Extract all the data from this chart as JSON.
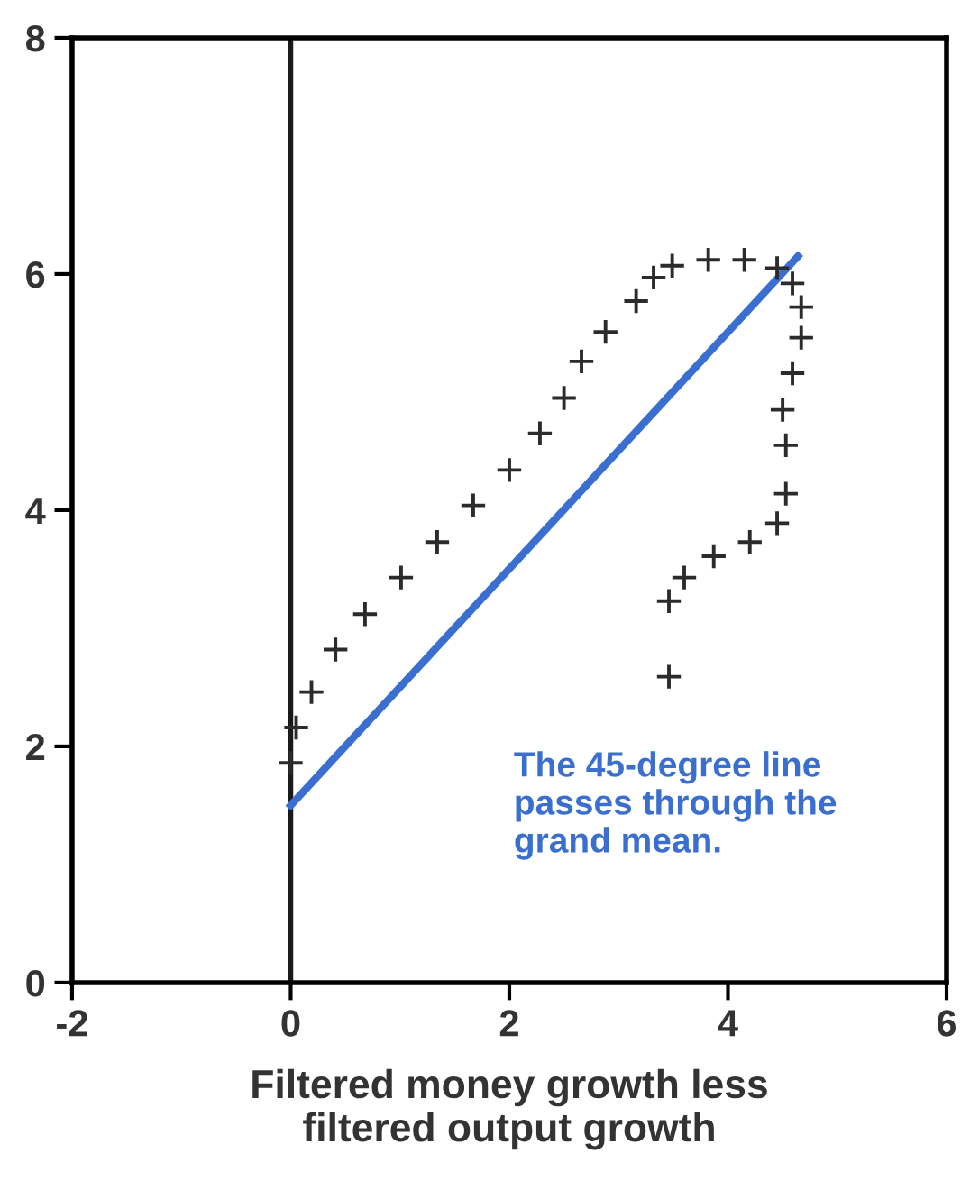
{
  "chart_data": {
    "type": "scatter",
    "xlabel": "Filtered money growth less\nfiltered output growth",
    "xlim": [
      -2,
      6
    ],
    "xticks": [
      {
        "value": -2,
        "label": "-2"
      },
      0,
      2,
      4,
      6
    ],
    "ylim": [
      0,
      8
    ],
    "yticks": [
      0,
      2,
      4,
      6,
      8
    ],
    "grid": false,
    "series": [
      {
        "marker": "cross",
        "color": "#2b2b2b",
        "x": [
          3.46,
          3.46,
          3.6,
          3.87,
          4.2,
          4.45,
          4.53,
          4.53,
          4.5,
          4.59,
          4.67,
          4.67,
          4.59,
          4.45,
          4.15,
          3.82,
          3.49,
          3.32,
          3.16,
          2.88,
          2.66,
          2.5,
          2.28,
          2.0,
          1.67,
          1.34,
          1.01,
          0.68,
          0.41,
          0.19,
          0.05,
          0.0
        ],
        "values": [
          2.59,
          3.23,
          3.43,
          3.61,
          3.73,
          3.89,
          4.14,
          4.55,
          4.85,
          5.16,
          5.46,
          5.72,
          5.92,
          6.05,
          6.12,
          6.12,
          6.07,
          5.97,
          5.77,
          5.51,
          5.26,
          4.95,
          4.65,
          4.34,
          4.04,
          3.73,
          3.43,
          3.12,
          2.82,
          2.46,
          2.16,
          1.86
        ]
      },
      {
        "type": "line",
        "marker": "none",
        "color": "#3a6fd0",
        "x": [
          0,
          4.64
        ],
        "values": [
          1.5,
          6.15
        ]
      }
    ],
    "ref_lines": [
      {
        "axis": "x",
        "value": 0,
        "color": "#1a1a1a"
      }
    ],
    "annotations": [
      "The 45-degree line\npasses through the\ngrand mean."
    ]
  }
}
